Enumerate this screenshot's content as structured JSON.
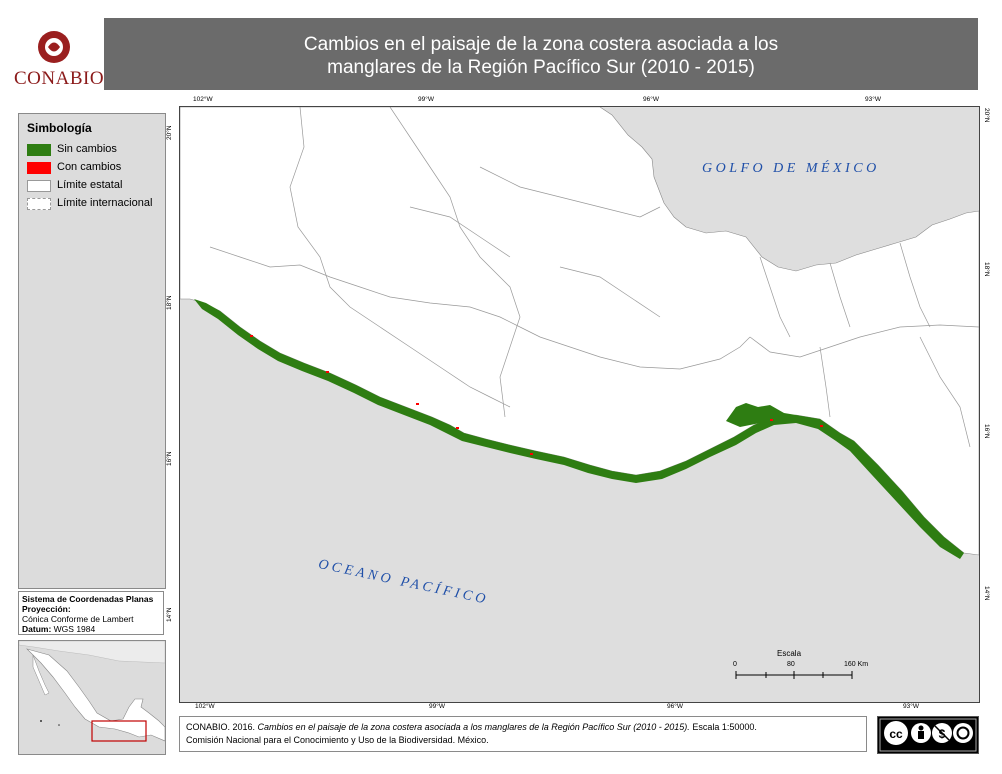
{
  "header": {
    "logo_text": "CONABIO",
    "title_line1": "Cambios en el paisaje de la zona costera asociada a los",
    "title_line2": "manglares de la Región Pacífico Sur (2010 - 2015)"
  },
  "legend": {
    "title": "Simbología",
    "items": [
      {
        "label": "Sin cambios",
        "color": "#2e7d12"
      },
      {
        "label": "Con cambios",
        "color": "#ff0000"
      },
      {
        "label": "Límite estatal",
        "color": "#ffffff"
      },
      {
        "label": "Límite internacional",
        "color": "#ffffff"
      }
    ]
  },
  "coords_box": {
    "line1": "Sistema de Coordenadas Planas",
    "line2": "Proyección:",
    "line3": "Cónica Conforme de Lambert",
    "datum_label": "Datum:",
    "datum_value": "WGS 1984"
  },
  "map": {
    "gulf_label": "GOLFO DE MÉXICO",
    "ocean_label": "OCEANO PACÍFICO",
    "colors": {
      "sea": "#dedede",
      "land": "#ffffff",
      "mangrove": "#2e7d12",
      "change": "#ff0000"
    },
    "ticks_top": [
      "102°W",
      "99°W",
      "96°W",
      "93°W"
    ],
    "ticks_bottom": [
      "102°W",
      "99°W",
      "96°W",
      "93°W"
    ],
    "ticks_left": [
      "20°N",
      "18°N",
      "16°N",
      "14°N"
    ],
    "ticks_right": [
      "20°N",
      "18°N",
      "16°N",
      "14°N"
    ],
    "scale": {
      "title": "Escala",
      "labels": [
        "0",
        "80",
        "160 Km"
      ]
    }
  },
  "credit": {
    "author": "CONABIO. 2016.",
    "italic": "Cambios en el paisaje de la zona costera asociada a los manglares de la Región Pacífico Sur (2010 - 2015).",
    "scale": "Escala 1:50000.",
    "line2": "Comisión Nacional para el Conocimiento y Uso de la Biodiversidad. México."
  }
}
